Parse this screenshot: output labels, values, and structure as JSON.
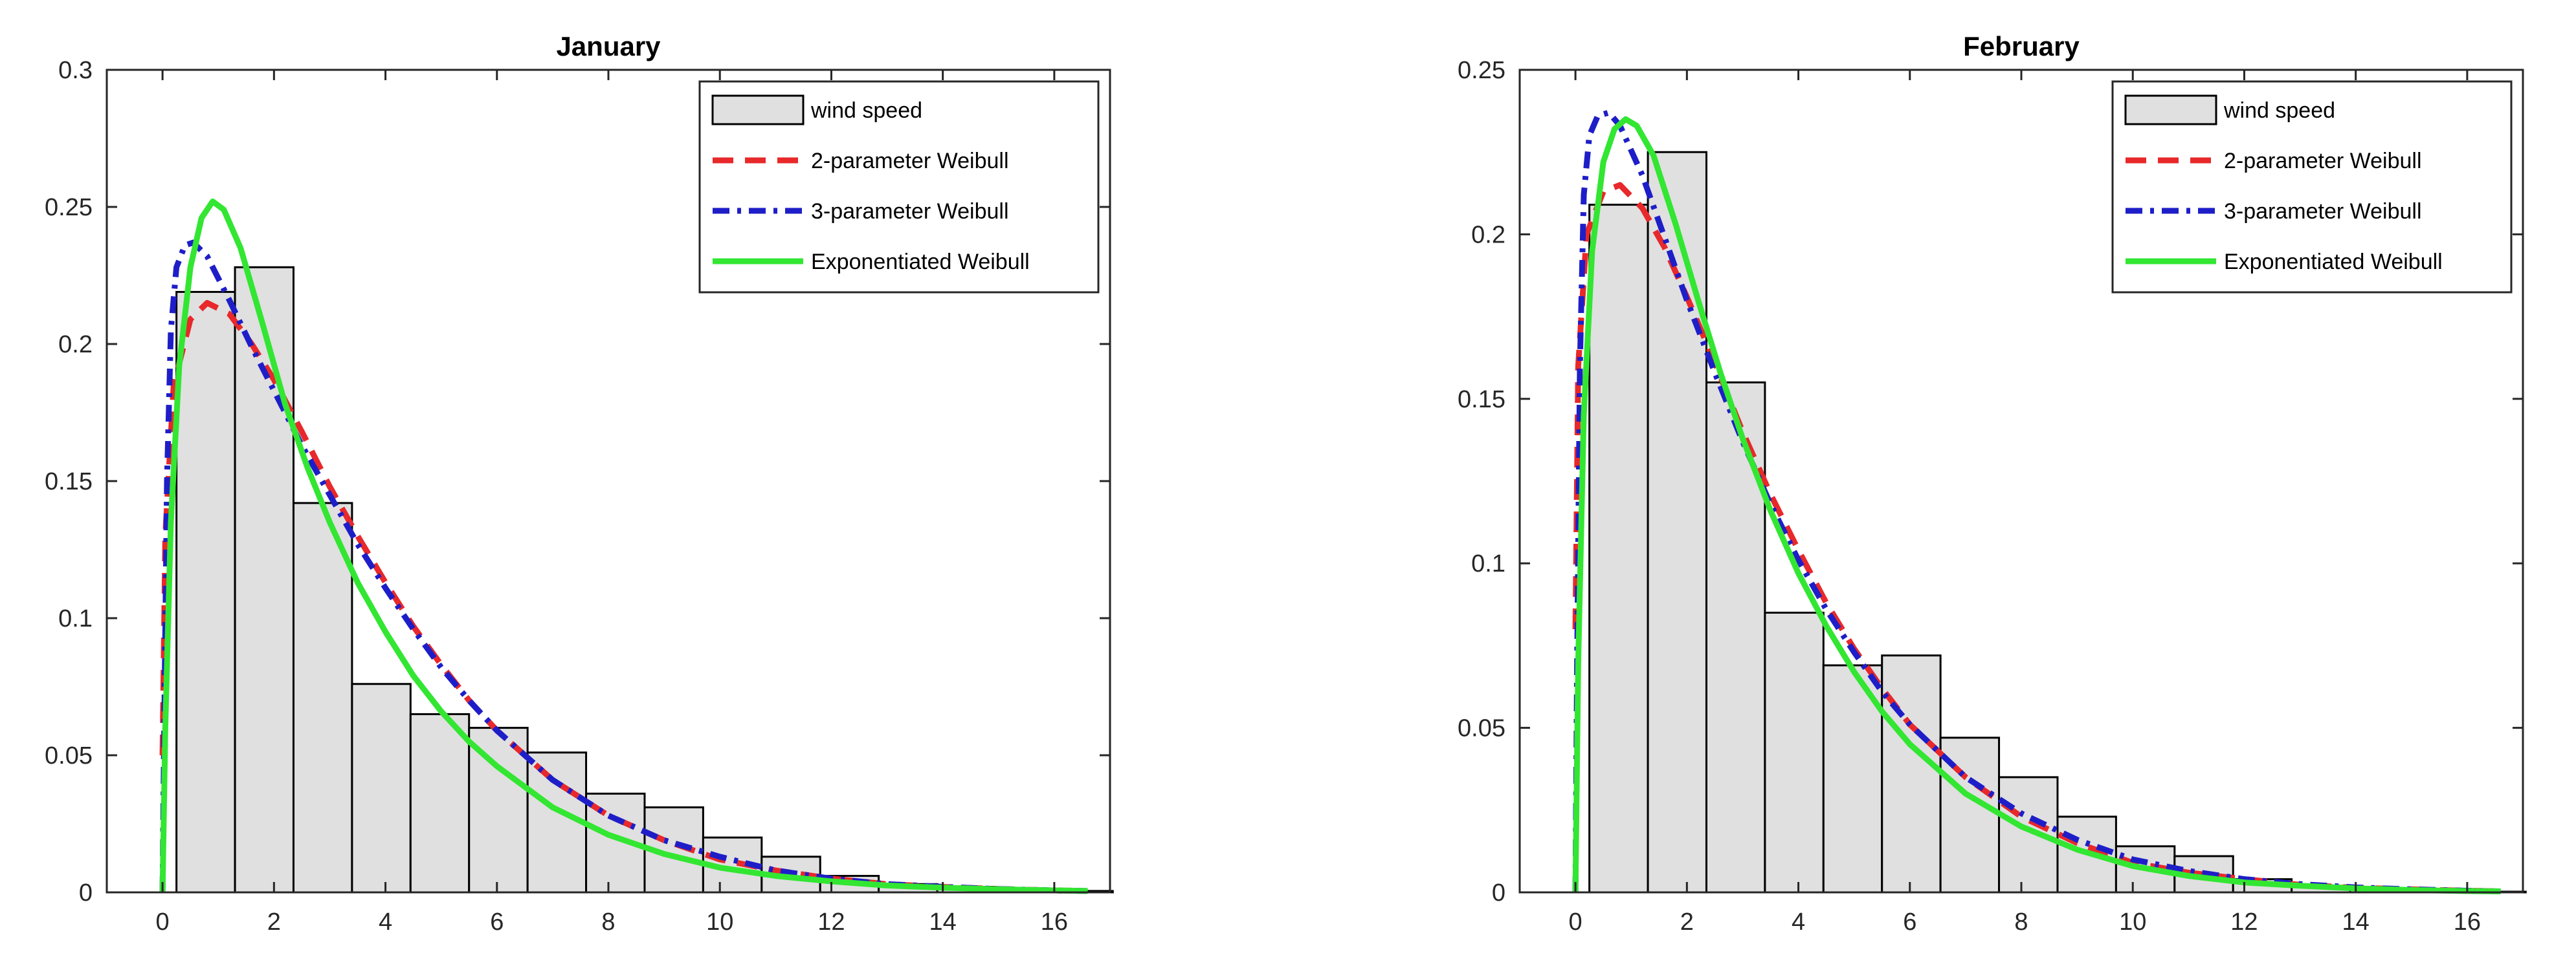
{
  "colors": {
    "bar_fill": "#e0e0e0",
    "bar_edge": "#000000",
    "weibull2": "#e8282a",
    "weibull3": "#1e1ec8",
    "expweibull": "#32e632",
    "axis": "#262626"
  },
  "chart_data": [
    {
      "type": "bar",
      "title": "January",
      "xlabel": "",
      "ylabel": "",
      "xlim": [
        -1,
        17
      ],
      "ylim": [
        0,
        0.3
      ],
      "xticks": [
        0,
        2,
        4,
        6,
        8,
        10,
        12,
        14,
        16
      ],
      "yticks": [
        0,
        0.05,
        0.1,
        0.15,
        0.2,
        0.25,
        0.3
      ],
      "xtick_labels": [
        "0",
        "2",
        "4",
        "6",
        "8",
        "10",
        "12",
        "14",
        "16"
      ],
      "ytick_labels": [
        "0",
        "0.05",
        "0.1",
        "0.15",
        "0.2",
        "0.25",
        "0.3"
      ],
      "legend_position": "top-right",
      "histogram": {
        "name": "wind speed",
        "bin_width": 1.05,
        "bin_start": 0.25,
        "values": [
          0.219,
          0.228,
          0.142,
          0.076,
          0.065,
          0.06,
          0.051,
          0.036,
          0.031,
          0.02,
          0.013,
          0.006,
          0.003,
          0.002,
          0.001,
          0.0005
        ]
      },
      "series": [
        {
          "name": "2-parameter Weibull",
          "style": "dashed",
          "x": [
            0.0,
            0.05,
            0.2,
            0.5,
            0.8,
            1.2,
            1.6,
            2.0,
            2.5,
            3.0,
            3.5,
            4.0,
            4.5,
            5.0,
            5.5,
            6.0,
            7.0,
            8.0,
            9.0,
            10.0,
            11.0,
            12.0,
            13.0,
            14.0,
            15.0,
            16.0,
            16.6
          ],
          "values": [
            0.05,
            0.13,
            0.185,
            0.209,
            0.215,
            0.211,
            0.2,
            0.187,
            0.168,
            0.148,
            0.13,
            0.113,
            0.097,
            0.083,
            0.07,
            0.059,
            0.041,
            0.028,
            0.019,
            0.012,
            0.008,
            0.005,
            0.003,
            0.002,
            0.0012,
            0.0007,
            0.0005
          ]
        },
        {
          "name": "3-parameter Weibull",
          "style": "dashdot",
          "x": [
            0.0,
            0.03,
            0.08,
            0.15,
            0.25,
            0.4,
            0.55,
            0.8,
            1.2,
            1.6,
            2.0,
            2.5,
            3.0,
            3.5,
            4.0,
            4.5,
            5.0,
            5.5,
            6.0,
            7.0,
            8.0,
            9.0,
            10.0,
            11.0,
            12.0,
            13.0,
            14.0,
            15.0,
            16.0,
            16.6
          ],
          "values": [
            0.0,
            0.06,
            0.15,
            0.205,
            0.228,
            0.236,
            0.237,
            0.232,
            0.216,
            0.199,
            0.183,
            0.163,
            0.145,
            0.127,
            0.111,
            0.096,
            0.082,
            0.07,
            0.059,
            0.041,
            0.028,
            0.019,
            0.013,
            0.008,
            0.005,
            0.003,
            0.002,
            0.0012,
            0.0007,
            0.0005
          ]
        },
        {
          "name": "Exponentiated Weibull",
          "style": "solid",
          "x": [
            0.0,
            0.05,
            0.15,
            0.3,
            0.5,
            0.7,
            0.9,
            1.1,
            1.4,
            1.8,
            2.2,
            2.6,
            3.0,
            3.5,
            4.0,
            4.5,
            5.0,
            5.5,
            6.0,
            7.0,
            8.0,
            9.0,
            10.0,
            11.0,
            12.0,
            13.0,
            14.0,
            15.0,
            16.0,
            16.6
          ],
          "values": [
            0.0,
            0.06,
            0.135,
            0.192,
            0.228,
            0.246,
            0.252,
            0.249,
            0.235,
            0.207,
            0.178,
            0.155,
            0.135,
            0.113,
            0.095,
            0.079,
            0.066,
            0.055,
            0.046,
            0.031,
            0.021,
            0.014,
            0.009,
            0.006,
            0.004,
            0.0025,
            0.0017,
            0.0011,
            0.0007,
            0.0005
          ]
        }
      ]
    },
    {
      "type": "bar",
      "title": "February",
      "xlabel": "",
      "ylabel": "",
      "xlim": [
        -1,
        17
      ],
      "ylim": [
        0,
        0.25
      ],
      "xticks": [
        0,
        2,
        4,
        6,
        8,
        10,
        12,
        14,
        16
      ],
      "yticks": [
        0,
        0.05,
        0.1,
        0.15,
        0.2,
        0.25
      ],
      "xtick_labels": [
        "0",
        "2",
        "4",
        "6",
        "8",
        "10",
        "12",
        "14",
        "16"
      ],
      "ytick_labels": [
        "0",
        "0.05",
        "0.1",
        "0.15",
        "0.2",
        "0.25"
      ],
      "legend_position": "top-right",
      "histogram": {
        "name": "wind speed",
        "bin_width": 1.05,
        "bin_start": 0.25,
        "values": [
          0.209,
          0.225,
          0.155,
          0.085,
          0.069,
          0.072,
          0.047,
          0.035,
          0.023,
          0.014,
          0.011,
          0.004,
          0.002,
          0.001,
          0.0005,
          0.0002
        ]
      },
      "series": [
        {
          "name": "2-parameter Weibull",
          "style": "dashed",
          "x": [
            0.0,
            0.05,
            0.2,
            0.5,
            0.8,
            1.2,
            1.6,
            2.0,
            2.5,
            3.0,
            3.5,
            4.0,
            4.5,
            5.0,
            5.5,
            6.0,
            7.0,
            8.0,
            9.0,
            10.0,
            11.0,
            12.0,
            13.0,
            14.0,
            15.0,
            16.0,
            16.6
          ],
          "values": [
            0.08,
            0.16,
            0.2,
            0.213,
            0.215,
            0.208,
            0.196,
            0.181,
            0.161,
            0.14,
            0.121,
            0.104,
            0.088,
            0.074,
            0.062,
            0.051,
            0.035,
            0.023,
            0.015,
            0.009,
            0.006,
            0.004,
            0.0023,
            0.0014,
            0.0009,
            0.0005,
            0.0003
          ]
        },
        {
          "name": "3-parameter Weibull",
          "style": "dashdot",
          "x": [
            0.0,
            0.03,
            0.08,
            0.15,
            0.25,
            0.4,
            0.6,
            0.8,
            1.2,
            1.6,
            2.0,
            2.5,
            3.0,
            3.5,
            4.0,
            4.5,
            5.0,
            5.5,
            6.0,
            7.0,
            8.0,
            9.0,
            10.0,
            11.0,
            12.0,
            13.0,
            14.0,
            15.0,
            16.0,
            16.6
          ],
          "values": [
            0.0,
            0.07,
            0.16,
            0.212,
            0.23,
            0.236,
            0.237,
            0.233,
            0.218,
            0.199,
            0.18,
            0.158,
            0.137,
            0.118,
            0.101,
            0.086,
            0.073,
            0.061,
            0.051,
            0.035,
            0.024,
            0.016,
            0.01,
            0.0065,
            0.004,
            0.0025,
            0.0015,
            0.0009,
            0.0005,
            0.0003
          ]
        },
        {
          "name": "Exponentiated Weibull",
          "style": "solid",
          "x": [
            0.0,
            0.05,
            0.15,
            0.3,
            0.5,
            0.7,
            0.9,
            1.1,
            1.4,
            1.8,
            2.2,
            2.6,
            3.0,
            3.5,
            4.0,
            4.5,
            5.0,
            5.5,
            6.0,
            7.0,
            8.0,
            9.0,
            10.0,
            11.0,
            12.0,
            13.0,
            14.0,
            15.0,
            16.0,
            16.6
          ],
          "values": [
            0.0,
            0.07,
            0.145,
            0.195,
            0.222,
            0.232,
            0.235,
            0.233,
            0.224,
            0.203,
            0.18,
            0.158,
            0.138,
            0.116,
            0.097,
            0.081,
            0.067,
            0.055,
            0.045,
            0.03,
            0.02,
            0.013,
            0.008,
            0.005,
            0.003,
            0.002,
            0.0012,
            0.0007,
            0.0004,
            0.0003
          ]
        }
      ]
    }
  ]
}
